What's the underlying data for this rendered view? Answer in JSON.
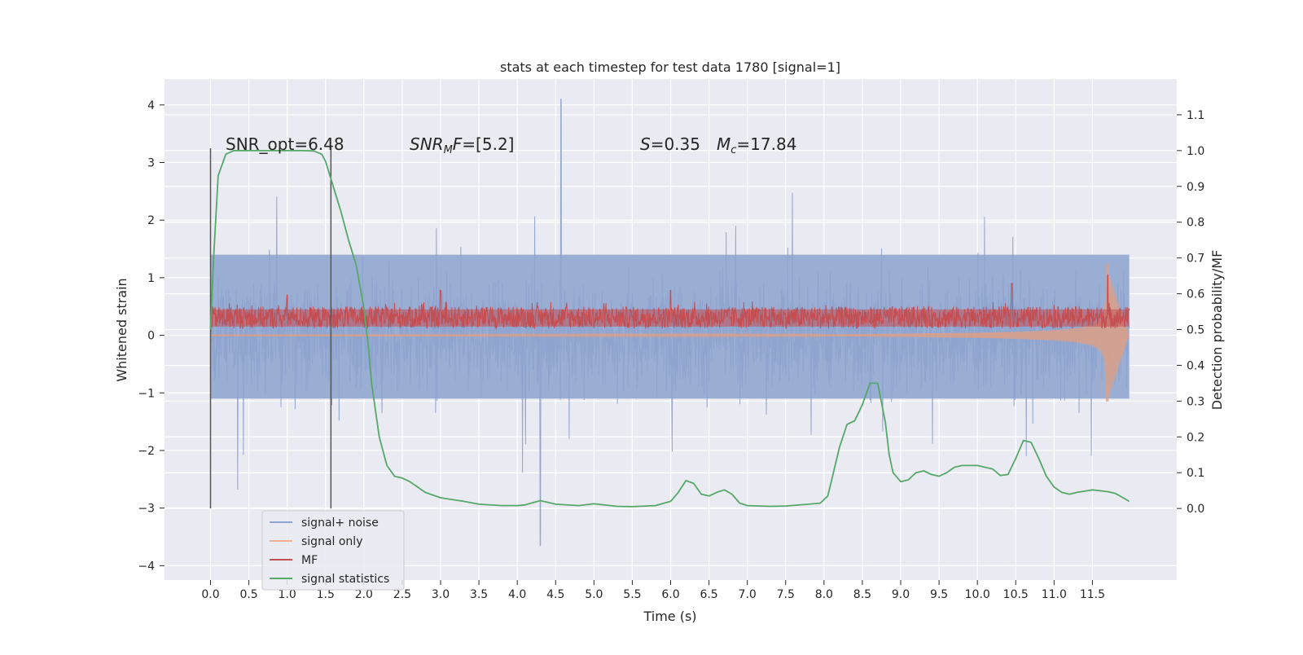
{
  "chart_data": {
    "type": "line",
    "title": "stats at each timestep for test data 1780 [signal=1]",
    "xlabel": "Time (s)",
    "ylabel": "Whitened strain",
    "ylabel_right": "Detection probability/MF",
    "xlim": [
      -0.6,
      12.6
    ],
    "ylim": [
      -4.25,
      4.45
    ],
    "ylim_right": [
      -0.2,
      1.2
    ],
    "x_ticks": [
      0.0,
      0.5,
      1.0,
      1.5,
      2.0,
      2.5,
      3.0,
      3.5,
      4.0,
      4.5,
      5.0,
      5.5,
      6.0,
      6.5,
      7.0,
      7.5,
      8.0,
      8.5,
      9.0,
      9.5,
      10.0,
      10.5,
      11.0,
      11.5
    ],
    "x_tick_labels": [
      "0.0",
      "0.5",
      "1.0",
      "1.5",
      "2.0",
      "2.5",
      "3.0",
      "3.5",
      "4.0",
      "4.5",
      "5.0",
      "5.5",
      "6.0",
      "6.5",
      "7.0",
      "7.5",
      "8.0",
      "8.5",
      "9.0",
      "9.5",
      "10.0",
      "10.5",
      "11.0",
      "11.5"
    ],
    "y_ticks": [
      4,
      3,
      2,
      1,
      0,
      -1,
      -2,
      -3,
      -4
    ],
    "y_tick_labels": [
      "4",
      "3",
      "2",
      "1",
      "0",
      "−1",
      "−2",
      "−3",
      "−4"
    ],
    "y_right_ticks": [
      1.1,
      1.0,
      0.9,
      0.8,
      0.7,
      0.6,
      0.5,
      0.4,
      0.3,
      0.2,
      0.1,
      0.0
    ],
    "y_right_tick_labels": [
      "1.1",
      "1.0",
      "0.9",
      "0.8",
      "0.7",
      "0.6",
      "0.5",
      "0.4",
      "0.3",
      "0.2",
      "0.1",
      "0.0"
    ],
    "grid": true,
    "legend_position": "lower-left",
    "legend": [
      "signal+ noise",
      "signal only",
      "MF",
      "signal statistics"
    ],
    "annotations": [
      "SNR_opt=6.48",
      "SNR_M F=[5.2]",
      "S=0.35",
      "M_c=17.84"
    ],
    "vertical_markers_x": [
      0.0,
      1.57
    ],
    "series": [
      {
        "name": "signal+ noise",
        "axis": "left",
        "color": "#4c72b0",
        "x_range": [
          0.0,
          11.98
        ],
        "typical_range": [
          -1.1,
          1.4
        ],
        "extremes": {
          "max": 4.1,
          "max_at": 4.57,
          "min": -3.65,
          "min_at": 4.3
        }
      },
      {
        "name": "signal only",
        "axis": "left",
        "color": "#dd8452",
        "x": [
          0.0,
          8.0,
          9.0,
          10.0,
          10.5,
          11.0,
          11.3,
          11.5,
          11.6,
          11.65,
          11.7,
          11.98
        ],
        "envelope": [
          0.01,
          0.02,
          0.03,
          0.05,
          0.07,
          0.1,
          0.14,
          0.2,
          0.3,
          0.45,
          1.25,
          0.0
        ]
      },
      {
        "name": "MF",
        "axis": "left",
        "color": "#c44e52",
        "x_range": [
          0.0,
          11.98
        ],
        "typical_range": [
          0.1,
          0.55
        ],
        "peaks": [
          {
            "x": 1.0,
            "y": 0.7
          },
          {
            "x": 3.0,
            "y": 0.78
          },
          {
            "x": 6.0,
            "y": 0.78
          },
          {
            "x": 10.45,
            "y": 0.9
          },
          {
            "x": 11.7,
            "y": 1.05
          }
        ]
      },
      {
        "name": "signal statistics",
        "axis": "right",
        "color": "#55a868",
        "x": [
          0.0,
          0.04,
          0.1,
          0.2,
          0.3,
          0.5,
          0.8,
          1.0,
          1.2,
          1.35,
          1.45,
          1.5,
          1.6,
          1.7,
          1.8,
          1.9,
          2.0,
          2.05,
          2.1,
          2.2,
          2.3,
          2.4,
          2.5,
          2.6,
          2.8,
          3.0,
          3.3,
          3.5,
          3.8,
          4.0,
          4.1,
          4.3,
          4.5,
          4.8,
          5.0,
          5.3,
          5.5,
          5.8,
          6.0,
          6.1,
          6.2,
          6.3,
          6.4,
          6.5,
          6.6,
          6.7,
          6.8,
          6.9,
          7.0,
          7.3,
          7.5,
          7.8,
          7.95,
          8.05,
          8.1,
          8.2,
          8.3,
          8.4,
          8.5,
          8.6,
          8.7,
          8.8,
          8.85,
          8.9,
          9.0,
          9.1,
          9.2,
          9.3,
          9.4,
          9.5,
          9.6,
          9.7,
          9.8,
          10.0,
          10.2,
          10.3,
          10.4,
          10.5,
          10.6,
          10.7,
          10.8,
          10.9,
          11.0,
          11.1,
          11.2,
          11.3,
          11.5,
          11.7,
          11.8,
          11.9,
          11.98
        ],
        "y": [
          0.5,
          0.7,
          0.93,
          0.99,
          1.0,
          1.0,
          1.0,
          1.0,
          1.0,
          0.999,
          0.99,
          0.97,
          0.9,
          0.83,
          0.75,
          0.68,
          0.56,
          0.47,
          0.35,
          0.2,
          0.12,
          0.09,
          0.085,
          0.075,
          0.045,
          0.03,
          0.02,
          0.012,
          0.008,
          0.008,
          0.01,
          0.022,
          0.012,
          0.008,
          0.013,
          0.006,
          0.005,
          0.008,
          0.02,
          0.045,
          0.078,
          0.07,
          0.04,
          0.035,
          0.045,
          0.052,
          0.04,
          0.015,
          0.008,
          0.006,
          0.007,
          0.012,
          0.015,
          0.035,
          0.08,
          0.17,
          0.235,
          0.245,
          0.29,
          0.35,
          0.35,
          0.24,
          0.15,
          0.1,
          0.075,
          0.08,
          0.1,
          0.105,
          0.095,
          0.09,
          0.1,
          0.115,
          0.12,
          0.12,
          0.11,
          0.092,
          0.095,
          0.14,
          0.19,
          0.185,
          0.14,
          0.09,
          0.06,
          0.045,
          0.04,
          0.045,
          0.052,
          0.047,
          0.042,
          0.03,
          0.02
        ]
      }
    ]
  }
}
